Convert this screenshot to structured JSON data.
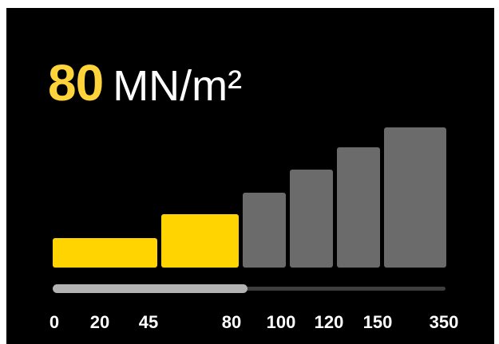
{
  "readout": {
    "value": "80",
    "unit": "MN/m²"
  },
  "gauge": {
    "selected_value": 80,
    "active_color": "#ffd400",
    "inactive_color": "#6b6b6b",
    "track_color": "#3e3e3e",
    "track_fill_color": "#b3b3b3",
    "ticks": [
      "0",
      "20",
      "45",
      "80",
      "100",
      "120",
      "150",
      "350"
    ],
    "segments": [
      {
        "from": 0,
        "to": 45,
        "level": 1,
        "active": true
      },
      {
        "from": 45,
        "to": 80,
        "level": 2,
        "active": true
      },
      {
        "from": 80,
        "to": 100,
        "level": 3,
        "active": false
      },
      {
        "from": 100,
        "to": 120,
        "level": 4,
        "active": false
      },
      {
        "from": 120,
        "to": 150,
        "level": 5,
        "active": false
      },
      {
        "from": 150,
        "to": 350,
        "level": 6,
        "active": false
      }
    ]
  }
}
